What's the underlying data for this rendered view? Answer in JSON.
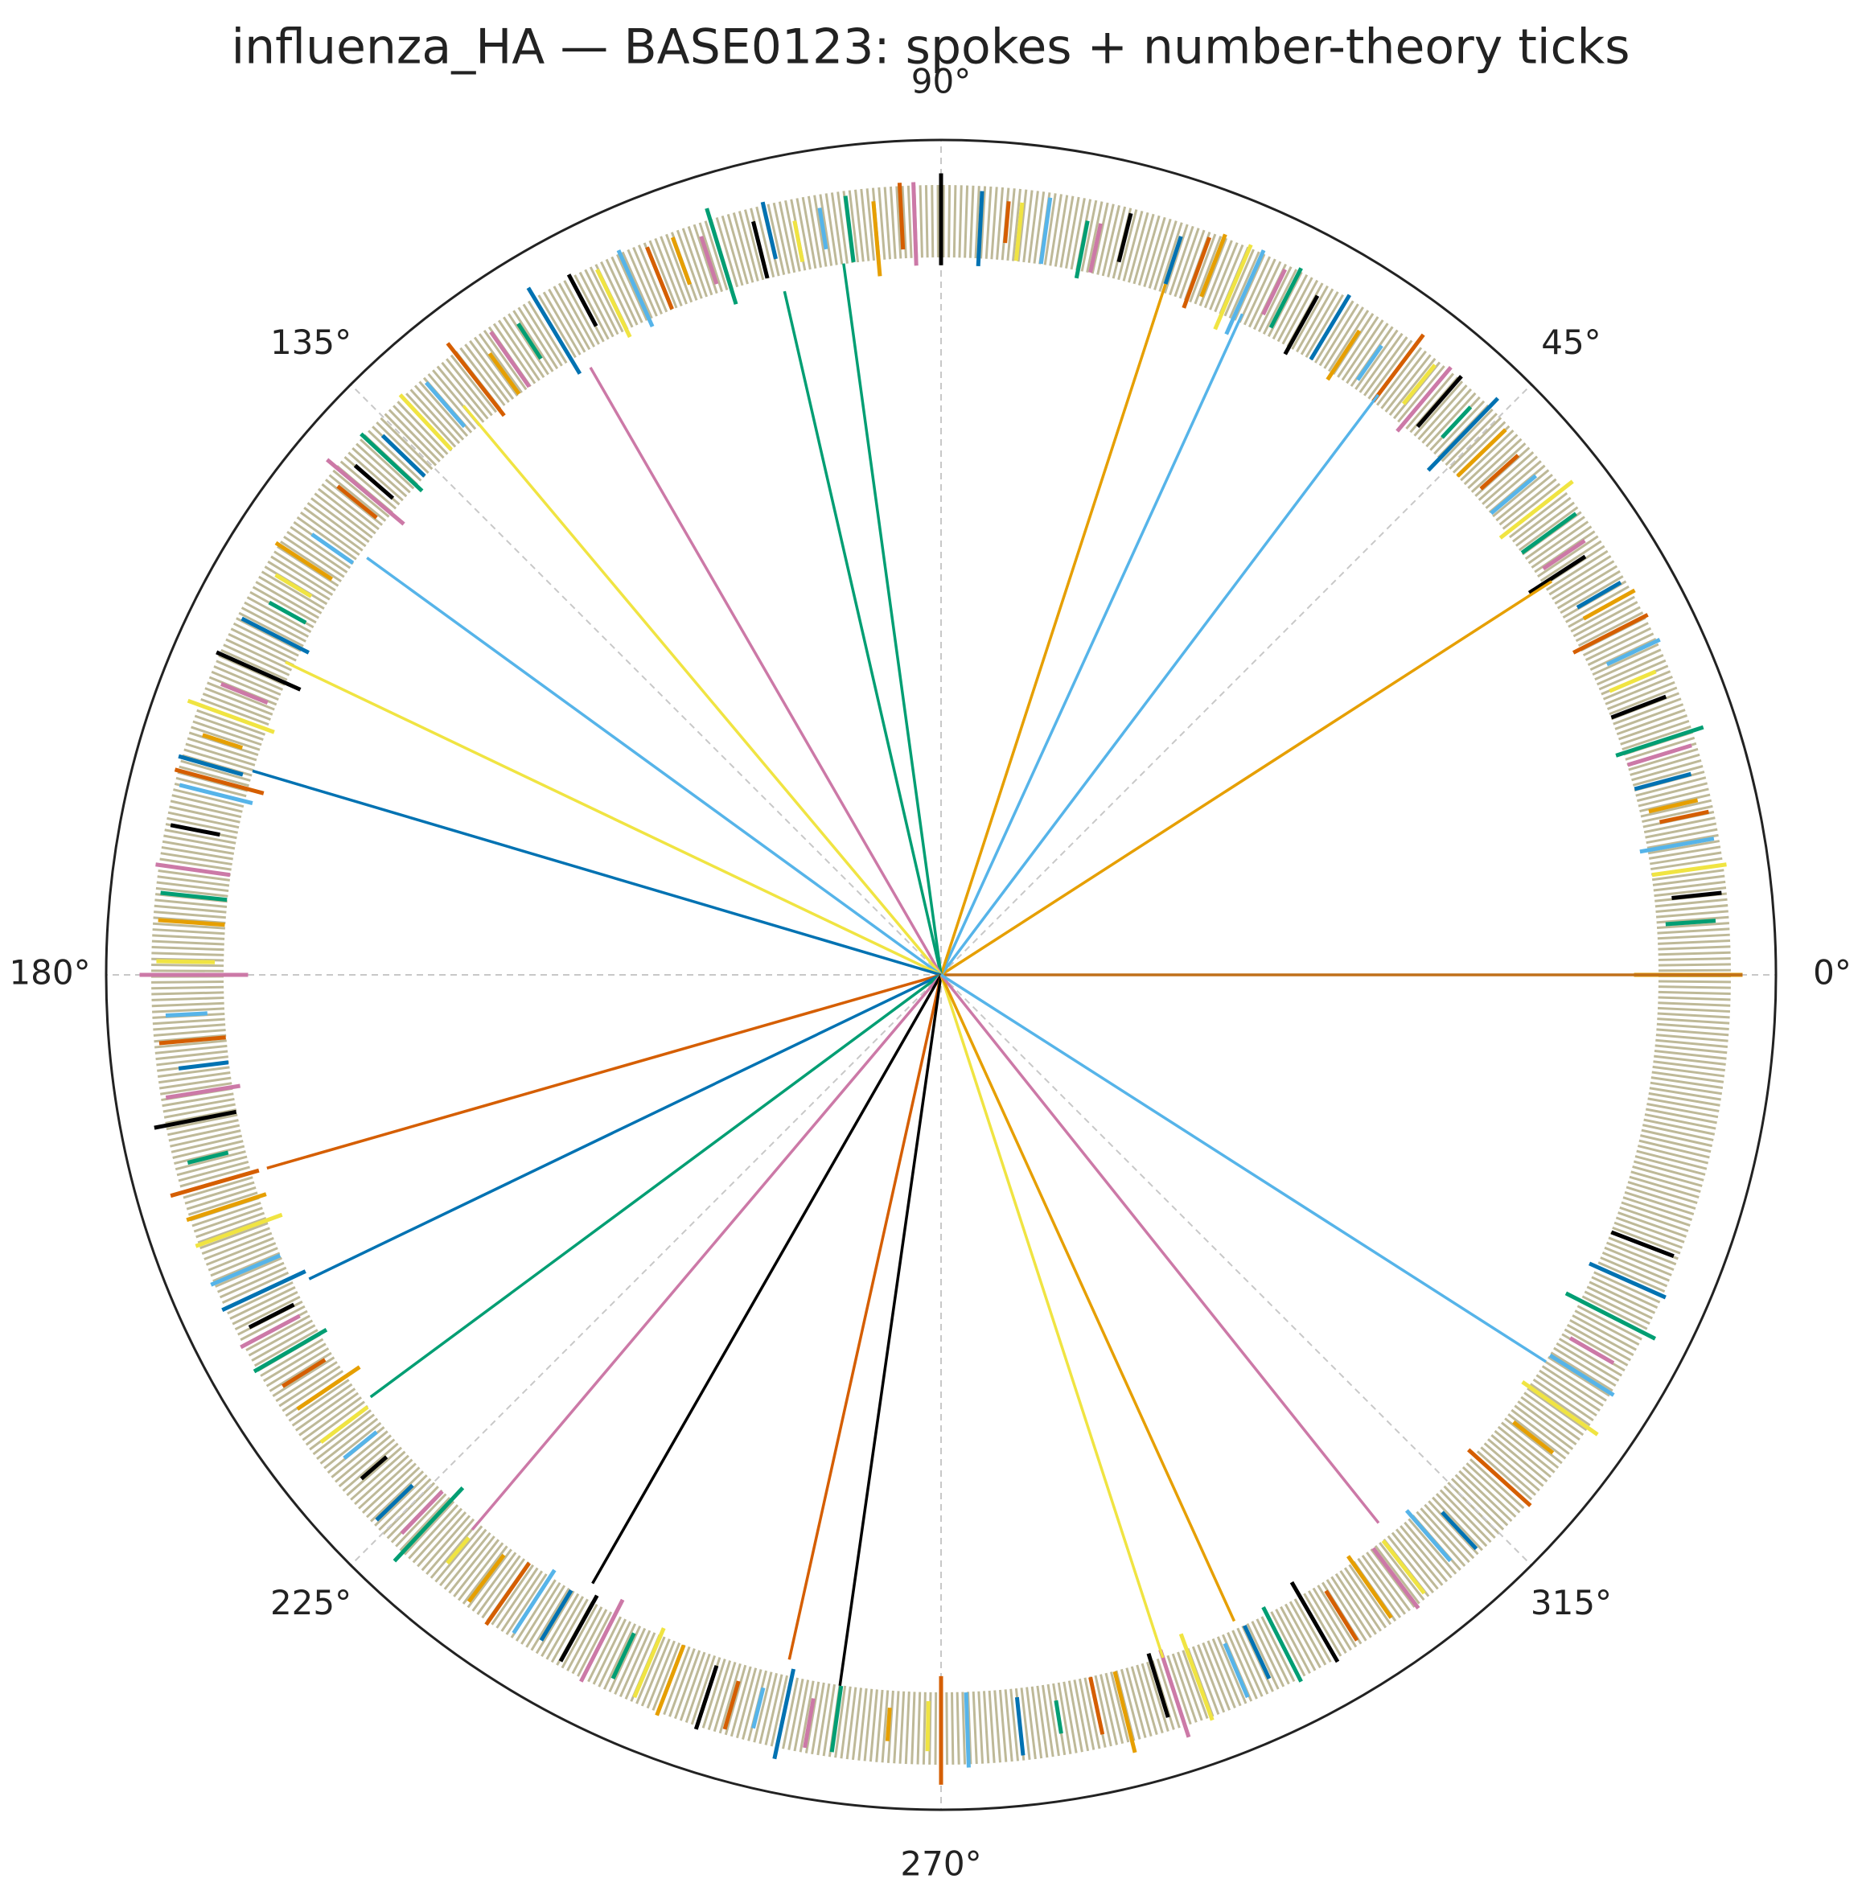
{
  "chart_data": {
    "type": "polar",
    "title": "influenza_HA — BASE0123: spokes + number-theory ticks",
    "rlim": [
      0,
      1
    ],
    "xticks": [
      {
        "value": 0,
        "label": "0°"
      },
      {
        "value": 45,
        "label": "45°"
      },
      {
        "value": 90,
        "label": "90°"
      },
      {
        "value": 135,
        "label": "135°"
      },
      {
        "value": 180,
        "label": "180°"
      },
      {
        "value": 225,
        "label": "225°"
      },
      {
        "value": 270,
        "label": "270°"
      },
      {
        "value": 315,
        "label": "315°"
      }
    ],
    "grid": true,
    "spokes": {
      "theta": [
        0,
        32.8,
        53,
        65.5,
        72,
        97.8,
        102.9,
        120,
        130,
        144,
        154.5,
        163.5,
        196,
        205.7,
        216.5,
        229.8,
        240.2,
        257.5,
        261.9,
        288,
        294.4,
        308.6,
        327.4
      ],
      "r": [
        0.96,
        0.87,
        0.87,
        0.87,
        0.87,
        0.86,
        0.84,
        0.84,
        0.89,
        0.85,
        0.87,
        0.86,
        0.84,
        0.84,
        0.85,
        0.87,
        0.84,
        0.84,
        0.86,
        0.86,
        0.85,
        0.84,
        0.86
      ],
      "colors": [
        "#c0701a",
        "#E69F00",
        "#56B4E9",
        "#56B4E9",
        "#E69F00",
        "#009E73",
        "#009E73",
        "#CC79A7",
        "#F0E442",
        "#56B4E9",
        "#F0E442",
        "#0072B2",
        "#D55E00",
        "#0072B2",
        "#009E73",
        "#CC79A7",
        "#000000",
        "#D55E00",
        "#000000",
        "#F0E442",
        "#E69F00",
        "#CC79A7",
        "#56B4E9"
      ]
    },
    "ticks": [
      {
        "color": "#000000",
        "theta": [
          6,
          21,
          33,
          49,
          61,
          76,
          90,
          104,
          118,
          139,
          156,
          169,
          191,
          207,
          221,
          241,
          252,
          287,
          300,
          339
        ],
        "r0": [
          0.88,
          0.86,
          0.84,
          0.87,
          0.85,
          0.88,
          0.85,
          0.86,
          0.88,
          0.87,
          0.84,
          0.88,
          0.86,
          0.87,
          0.88,
          0.85,
          0.87,
          0.85,
          0.84,
          0.86
        ],
        "r1": [
          0.94,
          0.93,
          0.92,
          0.95,
          0.93,
          0.94,
          0.96,
          0.93,
          0.95,
          0.93,
          0.95,
          0.94,
          0.96,
          0.93,
          0.92,
          0.94,
          0.95,
          0.93,
          0.95,
          0.94
        ]
      },
      {
        "color": "#E69F00",
        "theta": [
          0,
          13,
          29,
          44,
          57,
          69,
          95,
          110,
          126,
          147,
          162,
          176,
          198,
          214,
          233,
          249,
          266,
          284,
          305,
          322
        ],
        "r0": [
          0.83,
          0.87,
          0.88,
          0.86,
          0.85,
          0.87,
          0.84,
          0.88,
          0.86,
          0.87,
          0.88,
          0.86,
          0.85,
          0.84,
          0.87,
          0.86,
          0.88,
          0.86,
          0.85,
          0.87
        ],
        "r1": [
          0.96,
          0.93,
          0.95,
          0.94,
          0.92,
          0.95,
          0.93,
          0.94,
          0.92,
          0.95,
          0.93,
          0.94,
          0.95,
          0.93,
          0.94,
          0.95,
          0.92,
          0.96,
          0.94,
          0.93
        ]
      },
      {
        "color": "#56B4E9",
        "theta": [
          10,
          25,
          40,
          55,
          66,
          82,
          99,
          114,
          131,
          145,
          166,
          183,
          203,
          219,
          237,
          256,
          272,
          293,
          311,
          328
        ],
        "r0": [
          0.85,
          0.88,
          0.86,
          0.87,
          0.84,
          0.86,
          0.88,
          0.85,
          0.87,
          0.86,
          0.85,
          0.88,
          0.86,
          0.87,
          0.85,
          0.88,
          0.86,
          0.87,
          0.85,
          0.86
        ],
        "r1": [
          0.94,
          0.95,
          0.93,
          0.92,
          0.95,
          0.94,
          0.93,
          0.95,
          0.94,
          0.92,
          0.94,
          0.93,
          0.95,
          0.92,
          0.94,
          0.93,
          0.95,
          0.94,
          0.93,
          0.95
        ]
      },
      {
        "color": "#009E73",
        "theta": [
          4,
          18,
          36,
          47,
          63,
          79,
          97,
          107,
          123,
          137,
          151,
          174,
          194,
          210,
          227,
          245,
          262,
          279,
          297,
          333
        ],
        "r0": [
          0.87,
          0.85,
          0.86,
          0.88,
          0.87,
          0.85,
          0.86,
          0.84,
          0.88,
          0.85,
          0.87,
          0.86,
          0.88,
          0.85,
          0.84,
          0.87,
          0.86,
          0.88,
          0.85,
          0.84
        ],
        "r1": [
          0.93,
          0.96,
          0.94,
          0.93,
          0.95,
          0.92,
          0.94,
          0.96,
          0.93,
          0.95,
          0.92,
          0.94,
          0.93,
          0.95,
          0.96,
          0.93,
          0.94,
          0.92,
          0.95,
          0.96
        ]
      },
      {
        "color": "#F0E442",
        "theta": [
          8,
          23,
          38,
          51,
          67,
          84,
          101,
          116,
          133,
          149,
          160,
          179,
          200,
          217,
          230,
          247,
          269,
          290,
          308,
          325
        ],
        "r0": [
          0.86,
          0.87,
          0.85,
          0.88,
          0.84,
          0.86,
          0.87,
          0.85,
          0.86,
          0.88,
          0.85,
          0.87,
          0.84,
          0.86,
          0.88,
          0.85,
          0.87,
          0.84,
          0.86,
          0.85
        ],
        "r1": [
          0.95,
          0.93,
          0.96,
          0.94,
          0.95,
          0.93,
          0.92,
          0.94,
          0.95,
          0.93,
          0.96,
          0.94,
          0.95,
          0.93,
          0.92,
          0.94,
          0.93,
          0.95,
          0.94,
          0.96
        ]
      },
      {
        "color": "#0072B2",
        "theta": [
          15,
          30,
          46,
          59,
          72,
          87,
          103,
          121,
          136,
          153,
          164,
          187,
          205,
          224,
          239,
          258,
          276,
          295,
          313,
          336
        ],
        "r0": [
          0.86,
          0.88,
          0.84,
          0.86,
          0.87,
          0.85,
          0.88,
          0.84,
          0.86,
          0.85,
          0.87,
          0.86,
          0.84,
          0.88,
          0.86,
          0.85,
          0.87,
          0.86,
          0.88,
          0.85
        ],
        "r1": [
          0.93,
          0.94,
          0.96,
          0.95,
          0.93,
          0.94,
          0.95,
          0.96,
          0.93,
          0.94,
          0.95,
          0.92,
          0.95,
          0.94,
          0.93,
          0.96,
          0.94,
          0.93,
          0.94,
          0.95
        ]
      },
      {
        "color": "#D55E00",
        "theta": [
          12,
          27,
          42,
          53,
          70,
          85,
          93,
          112,
          128,
          141,
          165,
          185,
          196,
          212,
          235,
          254,
          270,
          282,
          302,
          318
        ],
        "r0": [
          0.88,
          0.85,
          0.87,
          0.86,
          0.85,
          0.88,
          0.87,
          0.86,
          0.85,
          0.87,
          0.84,
          0.86,
          0.85,
          0.87,
          0.86,
          0.88,
          0.84,
          0.86,
          0.87,
          0.85
        ],
        "r1": [
          0.94,
          0.95,
          0.93,
          0.96,
          0.94,
          0.93,
          0.95,
          0.94,
          0.96,
          0.93,
          0.95,
          0.94,
          0.96,
          0.93,
          0.95,
          0.94,
          0.97,
          0.93,
          0.94,
          0.95
        ]
      },
      {
        "color": "#CC79A7",
        "theta": [
          17,
          34,
          50,
          64,
          78,
          92,
          108,
          125,
          140,
          158,
          172,
          180,
          189,
          208,
          226,
          243,
          260,
          288,
          307,
          330
        ],
        "r0": [
          0.86,
          0.87,
          0.85,
          0.88,
          0.86,
          0.85,
          0.87,
          0.86,
          0.84,
          0.87,
          0.86,
          0.83,
          0.85,
          0.87,
          0.86,
          0.84,
          0.88,
          0.85,
          0.86,
          0.87
        ],
        "r1": [
          0.94,
          0.93,
          0.95,
          0.94,
          0.92,
          0.95,
          0.93,
          0.94,
          0.96,
          0.93,
          0.95,
          0.96,
          0.94,
          0.95,
          0.93,
          0.95,
          0.94,
          0.96,
          0.95,
          0.93
        ]
      }
    ]
  }
}
